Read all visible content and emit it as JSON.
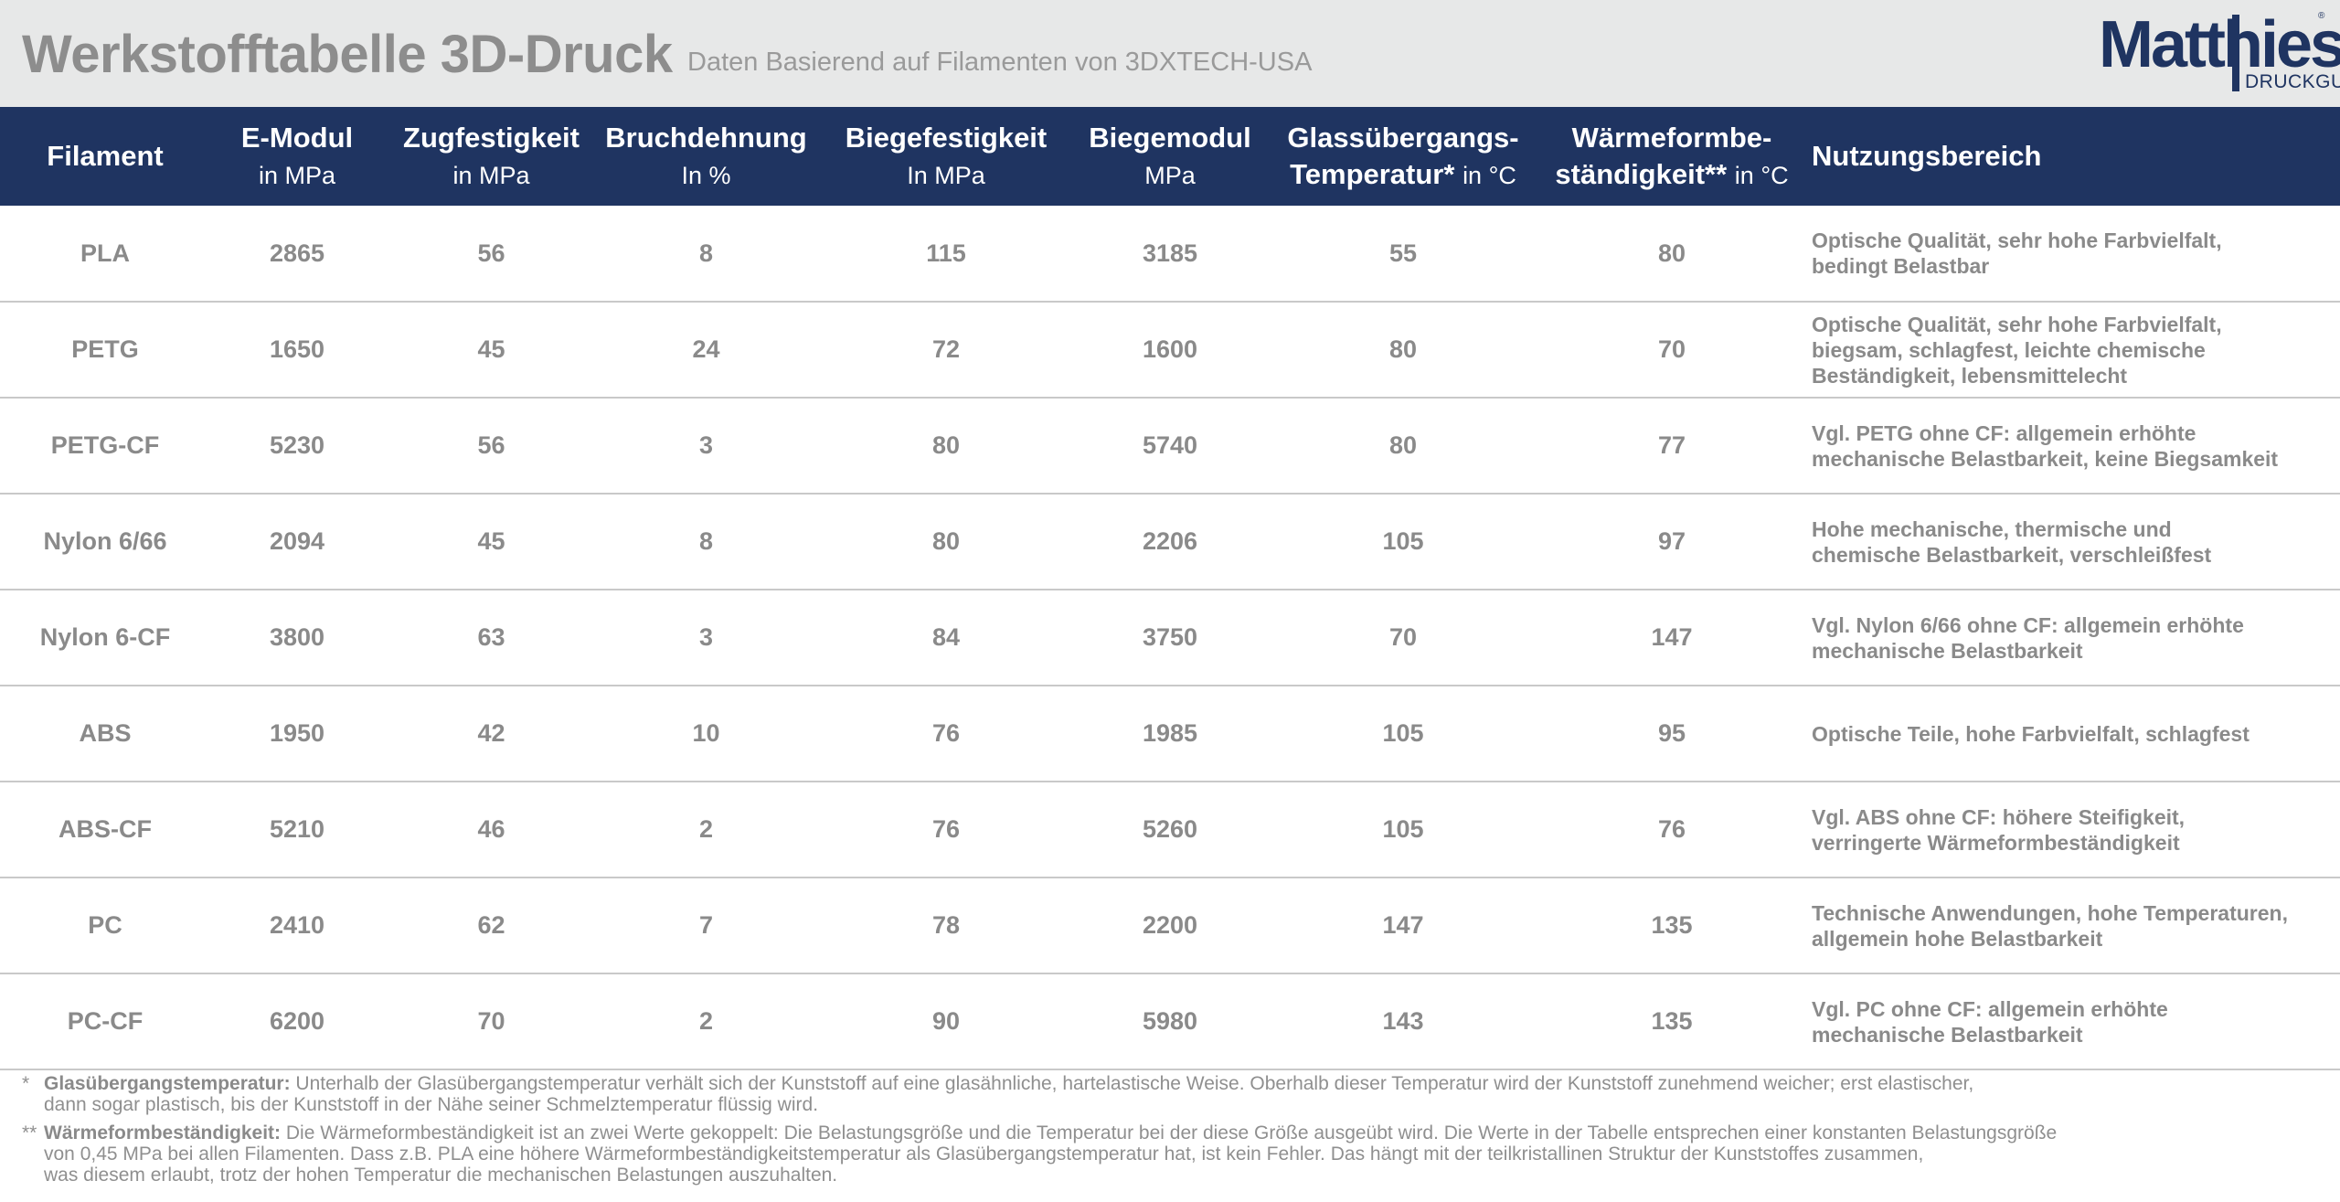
{
  "header": {
    "title": "Werkstofftabelle 3D-Druck",
    "subtitle": "Daten Basierend auf Filamenten von 3DXTECH-USA",
    "logo": {
      "name": "Matthies",
      "sub": "DRUCKGUSS",
      "reg": "®",
      "brand_color": "#1f3461"
    }
  },
  "table": {
    "header_color": "#1f3461",
    "columns": [
      {
        "label": "Filament",
        "unit": ""
      },
      {
        "label": "E-Modul",
        "unit": "in MPa"
      },
      {
        "label": "Zugfestigkeit",
        "unit": "in MPa"
      },
      {
        "label": "Bruchdehnung",
        "unit": "In %"
      },
      {
        "label": "Biegefestigkeit",
        "unit": "In MPa"
      },
      {
        "label": "Biegemodul",
        "unit": "MPa"
      },
      {
        "label": "Glassübergangs-",
        "label2": "Temperatur*",
        "unit": "in °C"
      },
      {
        "label": "Wärmeformbe-",
        "label2": "ständigkeit**",
        "unit": "in °C"
      },
      {
        "label": "Nutzungsbereich",
        "unit": ""
      }
    ],
    "rows": [
      {
        "filament": "PLA",
        "emodul": "2865",
        "zug": "56",
        "bruch": "8",
        "biegef": "115",
        "biegem": "3185",
        "glas": "55",
        "waerme": "80",
        "desc": [
          "Optische Qualität, sehr hohe Farbvielfalt,",
          "bedingt Belastbar"
        ]
      },
      {
        "filament": "PETG",
        "emodul": "1650",
        "zug": "45",
        "bruch": "24",
        "biegef": "72",
        "biegem": "1600",
        "glas": "80",
        "waerme": "70",
        "desc": [
          "Optische Qualität, sehr hohe Farbvielfalt,",
          "biegsam, schlagfest, leichte chemische",
          "Beständigkeit, lebensmittelecht"
        ]
      },
      {
        "filament": "PETG-CF",
        "emodul": "5230",
        "zug": "56",
        "bruch": "3",
        "biegef": "80",
        "biegem": "5740",
        "glas": "80",
        "waerme": "77",
        "desc": [
          "Vgl. PETG ohne CF: allgemein erhöhte",
          "mechanische Belastbarkeit, keine Biegsamkeit"
        ]
      },
      {
        "filament": "Nylon 6/66",
        "emodul": "2094",
        "zug": "45",
        "bruch": "8",
        "biegef": "80",
        "biegem": "2206",
        "glas": "105",
        "waerme": "97",
        "desc": [
          "Hohe mechanische, thermische und",
          "chemische Belastbarkeit, verschleißfest"
        ]
      },
      {
        "filament": "Nylon 6-CF",
        "emodul": "3800",
        "zug": "63",
        "bruch": "3",
        "biegef": "84",
        "biegem": "3750",
        "glas": "70",
        "waerme": "147",
        "desc": [
          "Vgl. Nylon 6/66 ohne CF: allgemein erhöhte",
          "mechanische Belastbarkeit"
        ]
      },
      {
        "filament": "ABS",
        "emodul": "1950",
        "zug": "42",
        "bruch": "10",
        "biegef": "76",
        "biegem": "1985",
        "glas": "105",
        "waerme": "95",
        "desc": [
          "Optische Teile, hohe Farbvielfalt, schlagfest"
        ]
      },
      {
        "filament": "ABS-CF",
        "emodul": "5210",
        "zug": "46",
        "bruch": "2",
        "biegef": "76",
        "biegem": "5260",
        "glas": "105",
        "waerme": "76",
        "desc": [
          "Vgl. ABS ohne CF: höhere Steifigkeit,",
          "verringerte Wärmeformbeständigkeit"
        ]
      },
      {
        "filament": "PC",
        "emodul": "2410",
        "zug": "62",
        "bruch": "7",
        "biegef": "78",
        "biegem": "2200",
        "glas": "147",
        "waerme": "135",
        "desc": [
          "Technische Anwendungen, hohe Temperaturen,",
          "allgemein hohe Belastbarkeit"
        ]
      },
      {
        "filament": "PC-CF",
        "emodul": "6200",
        "zug": "70",
        "bruch": "2",
        "biegef": "90",
        "biegem": "5980",
        "glas": "143",
        "waerme": "135",
        "desc": [
          "Vgl. PC ohne CF: allgemein erhöhte",
          "mechanische Belastbarkeit"
        ]
      }
    ]
  },
  "footnotes": [
    {
      "mark": "*",
      "term": "Glasübergangstemperatur:",
      "lines": [
        "Unterhalb der Glasübergangstemperatur verhält sich der Kunststoff auf eine glasähnliche, hartelastische Weise. Oberhalb dieser Temperatur wird der Kunststoff zunehmend weicher; erst elastischer,",
        "dann sogar plastisch, bis der Kunststoff in der Nähe seiner Schmelztemperatur flüssig wird."
      ]
    },
    {
      "mark": "**",
      "term": "Wärmeformbeständigkeit:",
      "lines": [
        "Die Wärmeformbeständigkeit ist an zwei Werte gekoppelt: Die Belastungsgröße und die Temperatur bei der diese Größe ausgeübt wird. Die Werte in der Tabelle entsprechen einer konstanten Belastungsgröße",
        "von 0,45 MPa bei allen Filamenten. Dass z.B. PLA eine höhere Wärmeformbeständigkeitstemperatur als Glasübergangstemperatur hat, ist kein Fehler. Das hängt mit der teilkristallinen Struktur der Kunststoffes zusammen,",
        "was diesem erlaubt, trotz der hohen Temperatur die mechanischen Belastungen auszuhalten."
      ]
    }
  ]
}
